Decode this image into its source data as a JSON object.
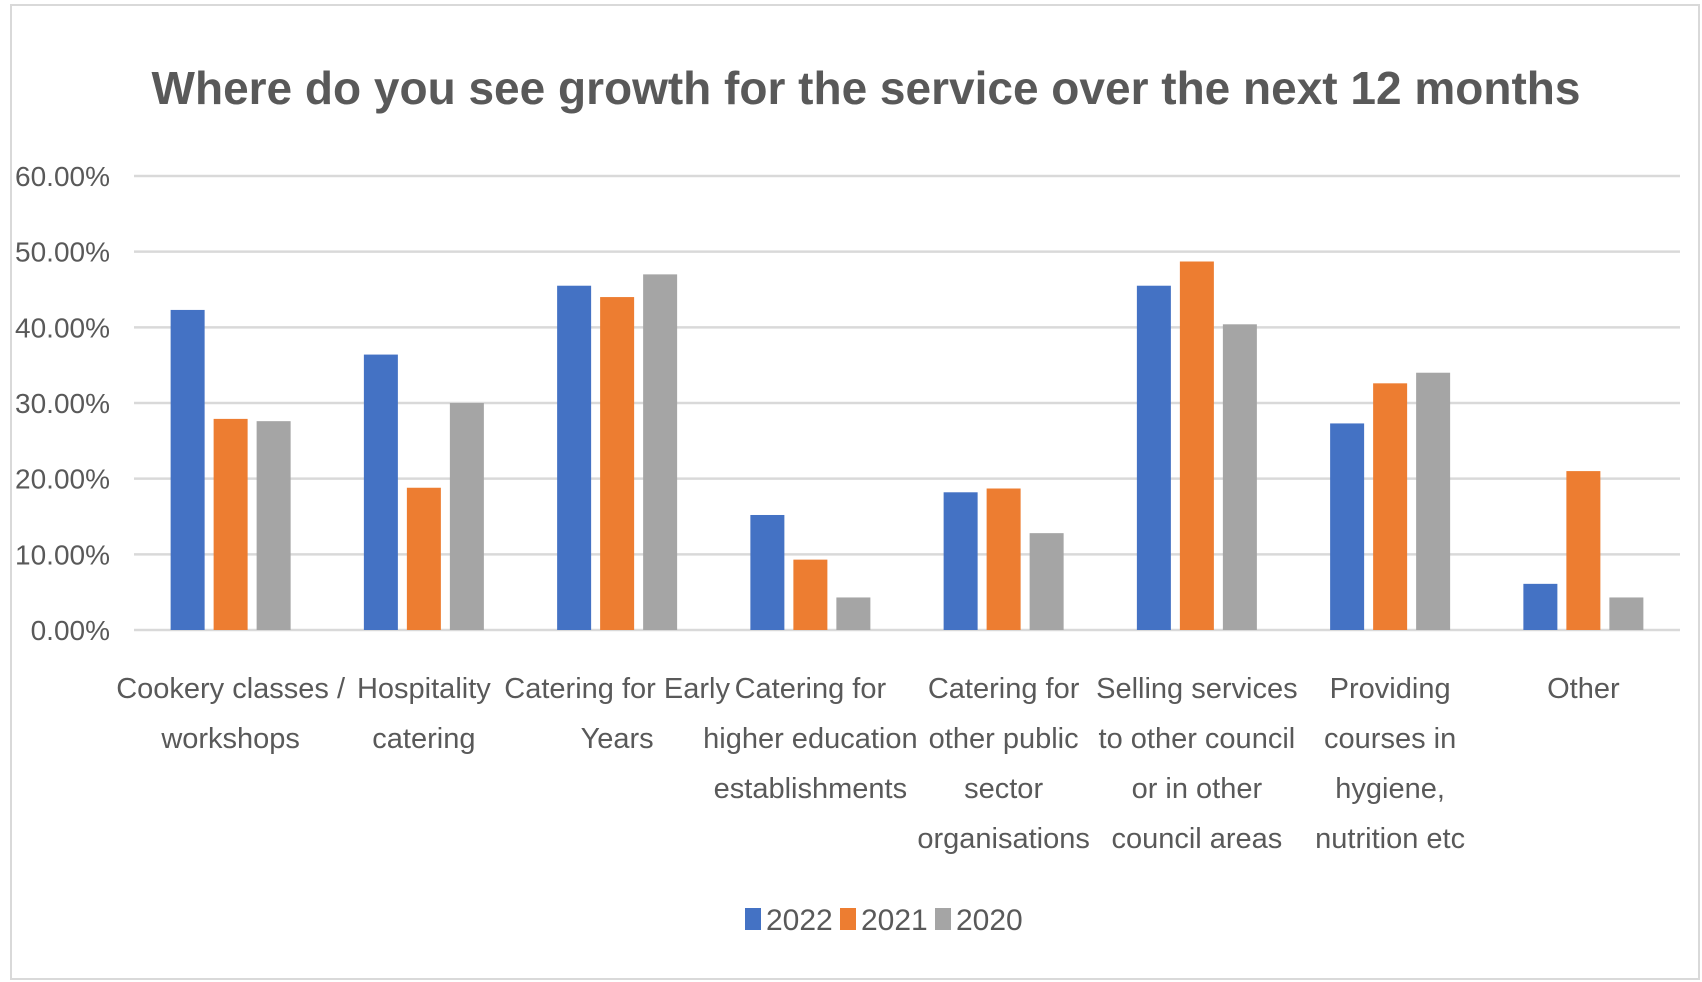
{
  "chart_data": {
    "type": "bar",
    "title": "Where do you see growth for the service over the next 12 months",
    "xlabel": "",
    "ylabel": "",
    "ylim": [
      0,
      0.6
    ],
    "yticks": [
      "0.00%",
      "10.00%",
      "20.00%",
      "30.00%",
      "40.00%",
      "50.00%",
      "60.00%"
    ],
    "grid": true,
    "legend_position": "bottom",
    "categories": [
      [
        "Cookery classes /",
        "workshops"
      ],
      [
        "Hospitality",
        "catering"
      ],
      [
        "Catering for Early",
        "Years"
      ],
      [
        "Catering for",
        "higher education",
        "establishments"
      ],
      [
        "Catering for",
        "other public",
        "sector",
        "organisations"
      ],
      [
        "Selling services",
        "to other council",
        "or in other",
        "council areas"
      ],
      [
        "Providing",
        "courses in",
        "hygiene,",
        "nutrition etc"
      ],
      [
        "Other"
      ]
    ],
    "series": [
      {
        "name": "2022",
        "color": "#4472c4",
        "values": [
          0.423,
          0.364,
          0.455,
          0.152,
          0.182,
          0.455,
          0.273,
          0.061
        ]
      },
      {
        "name": "2021",
        "color": "#ed7d31",
        "values": [
          0.279,
          0.188,
          0.44,
          0.093,
          0.187,
          0.487,
          0.326,
          0.21
        ]
      },
      {
        "name": "2020",
        "color": "#a5a5a5",
        "values": [
          0.276,
          0.3,
          0.47,
          0.043,
          0.128,
          0.404,
          0.34,
          0.043
        ]
      }
    ]
  }
}
